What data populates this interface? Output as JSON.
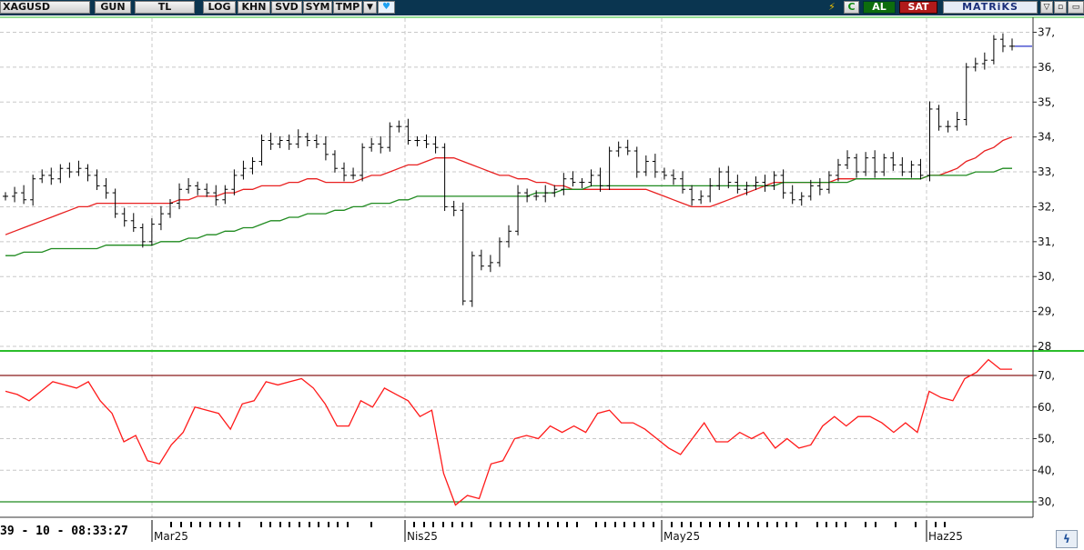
{
  "toolbar": {
    "symbol": "XAGUSD",
    "period": "GUN",
    "currency": "TL",
    "buttons": [
      "LOG",
      "KHN",
      "SVD",
      "SYM",
      "TMP"
    ],
    "dropdown_icon": "triangle-down-icon",
    "share_icon": "twitter-bird-icon",
    "flash_icon": "lightning-icon",
    "refresh_icon": "refresh-icon",
    "buy": "AL",
    "sell": "SAT",
    "brand": "MATRiKS",
    "window_buttons": [
      "▽",
      "▫",
      "▭"
    ]
  },
  "timestamp": "39 - 10 - 08:33:27",
  "corner_icon": "swirl-icon",
  "colors": {
    "toolbar_bg": "#0a3550",
    "price_bar": "#000000",
    "ma_short": "#e82020",
    "ma_long": "#1f8a1f",
    "rsi_line": "#ff1a1a",
    "rsi_upper_line": "#8b1a1a",
    "rsi_lower_line": "#1f8a1f",
    "panel_divider": "#2bbd2b",
    "last_price_marker": "#2a34c8"
  },
  "chart_data": [
    {
      "type": "ohlc",
      "x_labels": [
        "Mar25",
        "Nis25",
        "May25",
        "Haz25"
      ],
      "y_ticks": [
        "28",
        "29,",
        "30,",
        "31,",
        "32,",
        "33,",
        "34,",
        "35,",
        "36,",
        "37,"
      ],
      "ylim": [
        28,
        37.3
      ],
      "grid": true,
      "close": [
        32.3,
        32.4,
        32.2,
        32.8,
        32.9,
        32.8,
        33.1,
        33.0,
        33.1,
        32.9,
        32.6,
        32.4,
        31.8,
        31.6,
        31.4,
        31.0,
        31.5,
        31.8,
        32.1,
        32.5,
        32.6,
        32.5,
        32.4,
        32.2,
        32.5,
        32.9,
        33.1,
        33.3,
        33.9,
        33.8,
        33.9,
        33.8,
        34.0,
        33.9,
        33.8,
        33.5,
        33.1,
        32.9,
        32.9,
        33.7,
        33.8,
        33.7,
        34.3,
        34.3,
        33.9,
        33.9,
        33.8,
        33.7,
        32.0,
        31.9,
        29.3,
        30.6,
        30.3,
        30.4,
        31.0,
        31.3,
        32.4,
        32.3,
        32.3,
        32.4,
        32.5,
        32.8,
        32.7,
        32.7,
        32.9,
        32.6,
        33.6,
        33.7,
        33.6,
        33.0,
        33.3,
        33.0,
        32.9,
        32.8,
        32.5,
        32.2,
        32.3,
        32.6,
        33.0,
        32.7,
        32.5,
        32.6,
        32.7,
        32.6,
        32.9,
        32.4,
        32.2,
        32.3,
        32.6,
        32.5,
        32.9,
        33.2,
        33.4,
        33.0,
        33.4,
        33.0,
        33.4,
        33.2,
        33.0,
        33.2,
        32.9,
        34.8,
        34.3,
        34.3,
        34.5,
        36.0,
        36.1,
        36.2,
        36.8,
        36.6,
        36.6
      ],
      "series": [
        {
          "name": "",
          "kind": "ma_short",
          "values": [
            31.2,
            31.3,
            31.4,
            31.5,
            31.6,
            31.7,
            31.8,
            31.9,
            32.0,
            32.0,
            32.1,
            32.1,
            32.1,
            32.1,
            32.1,
            32.1,
            32.1,
            32.1,
            32.1,
            32.2,
            32.2,
            32.3,
            32.3,
            32.3,
            32.4,
            32.4,
            32.5,
            32.5,
            32.6,
            32.6,
            32.6,
            32.7,
            32.7,
            32.8,
            32.8,
            32.7,
            32.7,
            32.7,
            32.7,
            32.8,
            32.9,
            32.9,
            33.0,
            33.1,
            33.2,
            33.2,
            33.3,
            33.4,
            33.4,
            33.4,
            33.3,
            33.2,
            33.1,
            33.0,
            32.9,
            32.9,
            32.8,
            32.8,
            32.7,
            32.7,
            32.6,
            32.6,
            32.5,
            32.5,
            32.5,
            32.5,
            32.5,
            32.5,
            32.5,
            32.5,
            32.5,
            32.4,
            32.3,
            32.2,
            32.1,
            32.0,
            32.0,
            32.0,
            32.1,
            32.2,
            32.3,
            32.4,
            32.5,
            32.6,
            32.7,
            32.7,
            32.7,
            32.7,
            32.7,
            32.7,
            32.7,
            32.8,
            32.8,
            32.8,
            32.8,
            32.8,
            32.8,
            32.8,
            32.8,
            32.8,
            32.8,
            32.9,
            32.9,
            33.0,
            33.1,
            33.3,
            33.4,
            33.6,
            33.7,
            33.9,
            34.0
          ]
        },
        {
          "name": "",
          "kind": "ma_long",
          "values": [
            30.6,
            30.6,
            30.7,
            30.7,
            30.7,
            30.8,
            30.8,
            30.8,
            30.8,
            30.8,
            30.8,
            30.9,
            30.9,
            30.9,
            30.9,
            30.9,
            30.9,
            31.0,
            31.0,
            31.0,
            31.1,
            31.1,
            31.2,
            31.2,
            31.3,
            31.3,
            31.4,
            31.4,
            31.5,
            31.6,
            31.6,
            31.7,
            31.7,
            31.8,
            31.8,
            31.8,
            31.9,
            31.9,
            32.0,
            32.0,
            32.1,
            32.1,
            32.1,
            32.2,
            32.2,
            32.3,
            32.3,
            32.3,
            32.3,
            32.3,
            32.3,
            32.3,
            32.3,
            32.3,
            32.3,
            32.3,
            32.3,
            32.3,
            32.4,
            32.4,
            32.4,
            32.5,
            32.5,
            32.5,
            32.6,
            32.6,
            32.6,
            32.6,
            32.6,
            32.6,
            32.6,
            32.6,
            32.6,
            32.6,
            32.6,
            32.6,
            32.6,
            32.6,
            32.6,
            32.6,
            32.6,
            32.6,
            32.6,
            32.6,
            32.6,
            32.7,
            32.7,
            32.7,
            32.7,
            32.7,
            32.7,
            32.7,
            32.7,
            32.8,
            32.8,
            32.8,
            32.8,
            32.8,
            32.8,
            32.8,
            32.8,
            32.9,
            32.9,
            32.9,
            32.9,
            32.9,
            33.0,
            33.0,
            33.0,
            33.1,
            33.1
          ]
        }
      ]
    },
    {
      "type": "line",
      "y_ticks": [
        "30,",
        "40,",
        "50,",
        "60,",
        "70,"
      ],
      "ylim": [
        28,
        76.5
      ],
      "levels": [
        70,
        30
      ],
      "series": [
        {
          "name": "",
          "kind": "rsi_line",
          "values": [
            65,
            64,
            62,
            65,
            68,
            67,
            66,
            68,
            62,
            58,
            49,
            51,
            43,
            42,
            48,
            52,
            60,
            59,
            58,
            53,
            61,
            62,
            68,
            67,
            68,
            69,
            66,
            61,
            54,
            54,
            62,
            60,
            66,
            64,
            62,
            57,
            59,
            39,
            29,
            32,
            31,
            42,
            43,
            50,
            51,
            50,
            54,
            52,
            54,
            52,
            58,
            59,
            55,
            55,
            53,
            50,
            47,
            45,
            50,
            55,
            49,
            49,
            52,
            50,
            52,
            47,
            50,
            47,
            48,
            54,
            57,
            54,
            57,
            57,
            55,
            52,
            55,
            52,
            65,
            63,
            62,
            69,
            71,
            75,
            72,
            72
          ]
        }
      ]
    }
  ]
}
